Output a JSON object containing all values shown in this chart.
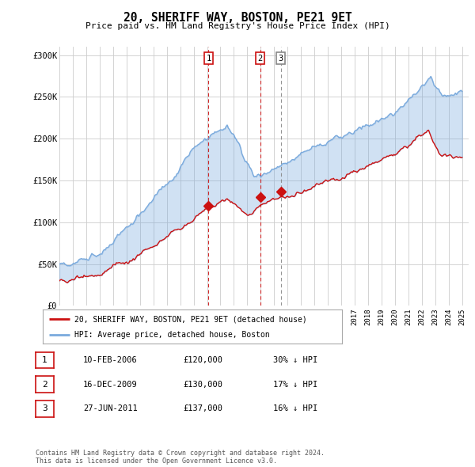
{
  "title": "20, SHERIFF WAY, BOSTON, PE21 9ET",
  "subtitle": "Price paid vs. HM Land Registry's House Price Index (HPI)",
  "ylabel_ticks": [
    "£0",
    "£50K",
    "£100K",
    "£150K",
    "£200K",
    "£250K",
    "£300K"
  ],
  "ytick_values": [
    0,
    50000,
    100000,
    150000,
    200000,
    250000,
    300000
  ],
  "ylim": [
    0,
    310000
  ],
  "xlim_start": 1995.0,
  "xlim_end": 2025.5,
  "hpi_color": "#7aaadd",
  "price_color": "#cc1111",
  "fill_color": "#ddeeff",
  "grid_color": "#cccccc",
  "background_color": "#ffffff",
  "transactions": [
    {
      "label": "1",
      "date": 2006.11,
      "price": 120000,
      "vline_style": "dashed_red"
    },
    {
      "label": "2",
      "date": 2009.96,
      "price": 130000,
      "vline_style": "dashed_red"
    },
    {
      "label": "3",
      "date": 2011.49,
      "price": 137000,
      "vline_style": "dashed_gray"
    }
  ],
  "transaction_table": [
    {
      "num": "1",
      "date": "10-FEB-2006",
      "price": "£120,000",
      "pct": "30% ↓ HPI"
    },
    {
      "num": "2",
      "date": "16-DEC-2009",
      "price": "£130,000",
      "pct": "17% ↓ HPI"
    },
    {
      "num": "3",
      "date": "27-JUN-2011",
      "price": "£137,000",
      "pct": "16% ↓ HPI"
    }
  ],
  "legend_line1": "20, SHERIFF WAY, BOSTON, PE21 9ET (detached house)",
  "legend_line2": "HPI: Average price, detached house, Boston",
  "footnote": "Contains HM Land Registry data © Crown copyright and database right 2024.\nThis data is licensed under the Open Government Licence v3.0."
}
